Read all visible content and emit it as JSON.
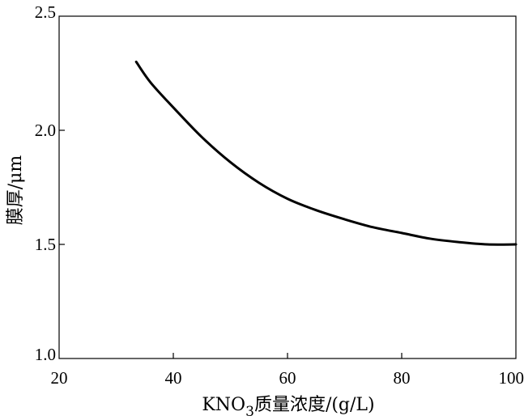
{
  "chart_data": {
    "type": "line",
    "title": "",
    "xlabel": {
      "prefix": "KNO",
      "subscript": "3",
      "suffix": "质量浓度/(g/L)"
    },
    "ylabel": "膜厚/μm",
    "xlim": [
      20,
      100
    ],
    "ylim": [
      1.0,
      2.5
    ],
    "x_ticks": [
      "20",
      "40",
      "60",
      "80",
      "100"
    ],
    "y_ticks": [
      "1.0",
      "1.5",
      "2.0",
      "2.5"
    ],
    "grid": false,
    "series": [
      {
        "x": [
          33.5,
          36,
          40,
          45,
          50,
          55,
          60,
          65,
          70,
          75,
          80,
          85,
          90,
          95,
          100
        ],
        "y": [
          2.3,
          2.21,
          2.1,
          1.97,
          1.86,
          1.77,
          1.7,
          1.65,
          1.61,
          1.575,
          1.55,
          1.525,
          1.51,
          1.5,
          1.5
        ]
      }
    ]
  }
}
